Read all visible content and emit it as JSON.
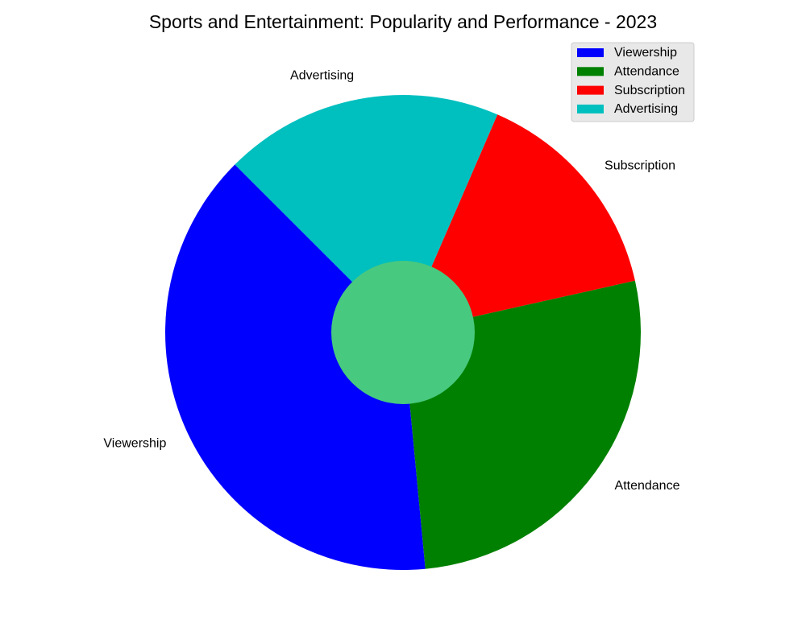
{
  "chart_data": {
    "type": "pie",
    "title": "Sports and Entertainment: Popularity and Performance - 2023",
    "categories": [
      "Viewership",
      "Attendance",
      "Subscription",
      "Advertising"
    ],
    "values": [
      39,
      27,
      15,
      19
    ],
    "colors": [
      "#0000ff",
      "#008000",
      "#ff0000",
      "#00bfbf"
    ],
    "center_circle_color": "#47c97f",
    "start_angle_deg": 135,
    "legend": {
      "placement": "top-right",
      "entries": [
        "Viewership",
        "Attendance",
        "Subscription",
        "Advertising"
      ]
    },
    "grid": false
  }
}
